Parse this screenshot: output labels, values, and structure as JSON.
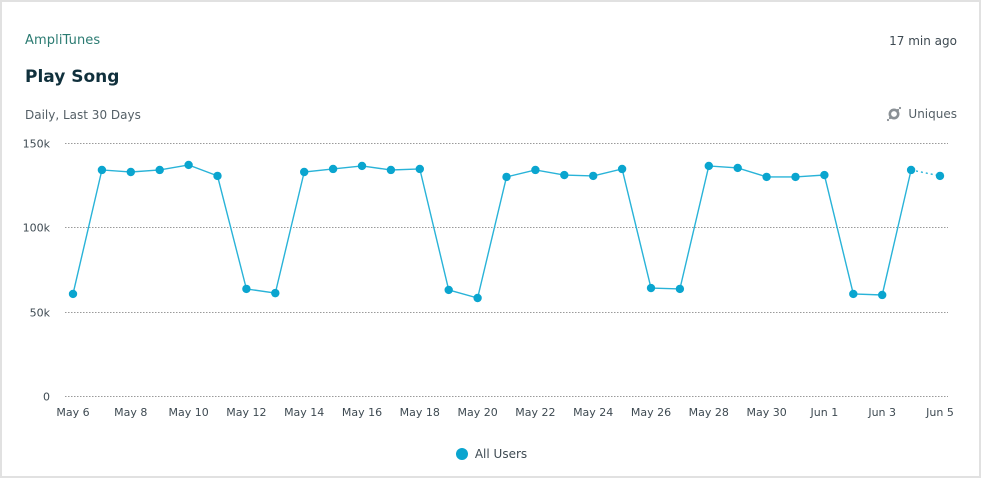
{
  "header": {
    "app_name": "AmpliTunes",
    "timestamp": "17 min ago",
    "title": "Play Song",
    "subtitle": "Daily, Last 30 Days",
    "metric_label": "Uniques",
    "metric_icon": "uniques-icon"
  },
  "legend": {
    "items": [
      {
        "label": "All Users",
        "color": "#0aa5cf"
      }
    ]
  },
  "colors": {
    "series": "#0aa5cf",
    "line": "#29b3d8",
    "grid": "#9a9a9a",
    "app_name": "#2b7b72",
    "title": "#10303c"
  },
  "chart_data": {
    "type": "line",
    "title": "Play Song",
    "subtitle": "Daily, Last 30 Days",
    "xlabel": "",
    "ylabel": "",
    "ylim": [
      0,
      150000
    ],
    "y_ticks": [
      0,
      50000,
      100000,
      150000
    ],
    "y_tick_labels": [
      "0",
      "50k",
      "100k",
      "150k"
    ],
    "grid": true,
    "grid_style": "dotted",
    "legend_position": "bottom",
    "x": [
      "May 6",
      "May 7",
      "May 8",
      "May 9",
      "May 10",
      "May 11",
      "May 12",
      "May 13",
      "May 14",
      "May 15",
      "May 16",
      "May 17",
      "May 18",
      "May 19",
      "May 20",
      "May 21",
      "May 22",
      "May 23",
      "May 24",
      "May 25",
      "May 26",
      "May 27",
      "May 28",
      "May 29",
      "May 30",
      "May 31",
      "Jun 1",
      "Jun 2",
      "Jun 3",
      "Jun 4",
      "Jun 5"
    ],
    "x_tick_labels": [
      "May 6",
      "May 8",
      "May 10",
      "May 12",
      "May 14",
      "May 16",
      "May 18",
      "May 20",
      "May 22",
      "May 24",
      "May 26",
      "May 28",
      "May 30",
      "Jun 1",
      "Jun 3",
      "Jun 5"
    ],
    "series": [
      {
        "name": "All Users",
        "values": [
          60500,
          134000,
          132800,
          134000,
          137000,
          130500,
          63500,
          61000,
          132800,
          134600,
          136400,
          134000,
          134600,
          62900,
          58100,
          129900,
          134000,
          131000,
          130500,
          134600,
          64000,
          63500,
          136400,
          135200,
          129900,
          129900,
          131000,
          60500,
          59900,
          134000,
          130500
        ],
        "incomplete_last_point": true
      }
    ]
  }
}
